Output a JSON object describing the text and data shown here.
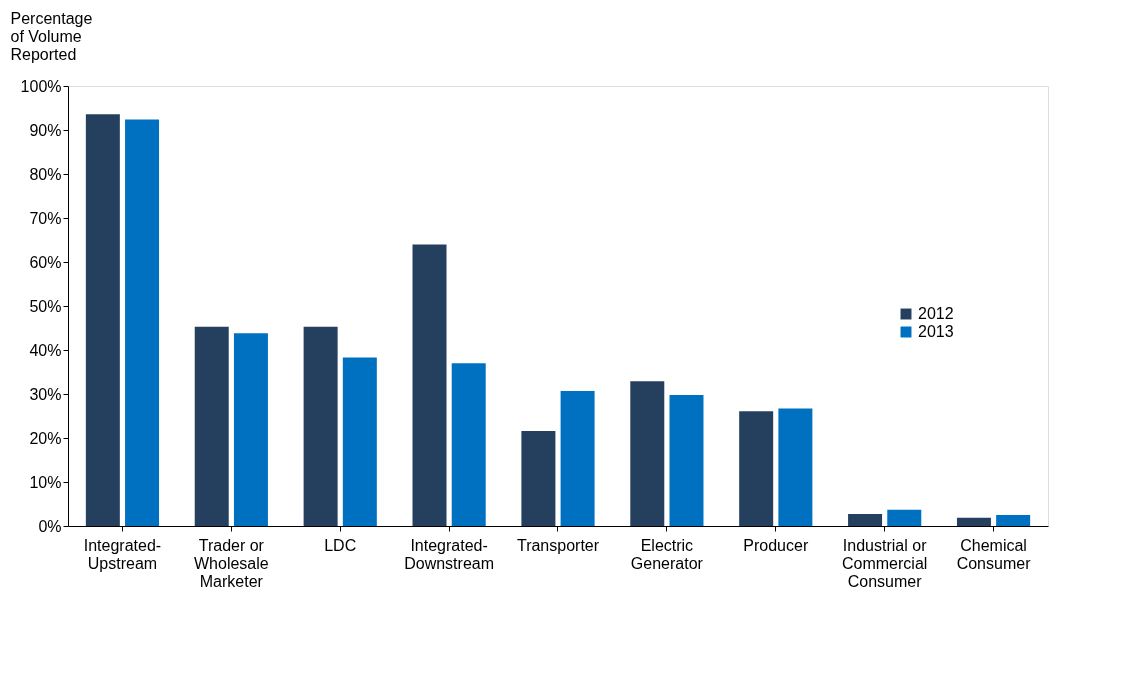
{
  "chart_data": {
    "type": "bar",
    "ylabel": "Percentage\nof Volume\nReported",
    "categories": [
      "Integrated-\nUpstream",
      "Trader or\nWholesale\nMarketer",
      "LDC",
      "Integrated-\nDownstream",
      "Transporter",
      "Electric\nGenerator",
      "Producer",
      "Industrial or\nCommercial\nConsumer",
      "Chemical\nConsumer"
    ],
    "series": [
      {
        "name": "2012",
        "color": "#253f5f",
        "values": [
          93.6,
          45.3,
          45.3,
          64.0,
          21.6,
          32.9,
          26.1,
          2.7,
          1.9
        ]
      },
      {
        "name": "2013",
        "color": "#0070c0",
        "values": [
          92.4,
          43.8,
          38.3,
          37.0,
          30.7,
          29.8,
          26.7,
          3.7,
          2.5
        ]
      }
    ],
    "ylim": [
      0,
      100
    ],
    "yticks": [
      {
        "value": 0,
        "label": "0%"
      },
      {
        "value": 10,
        "label": "10%"
      },
      {
        "value": 20,
        "label": "20%"
      },
      {
        "value": 30,
        "label": "30%"
      },
      {
        "value": 40,
        "label": "40%"
      },
      {
        "value": 50,
        "label": "50%"
      },
      {
        "value": 60,
        "label": "60%"
      },
      {
        "value": 70,
        "label": "70%"
      },
      {
        "value": 80,
        "label": "80%"
      },
      {
        "value": 90,
        "label": "90%"
      },
      {
        "value": 100,
        "label": "100%"
      }
    ],
    "grid": false,
    "legend": "right"
  }
}
